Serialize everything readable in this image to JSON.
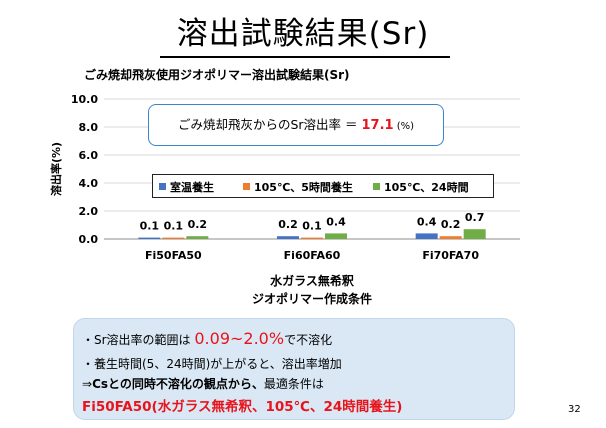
{
  "slide": {
    "title": "溶出試験結果(Sr)",
    "page_number": "32"
  },
  "callout": {
    "prefix": "ごみ焼却飛灰からのSr溶出率 ＝ ",
    "value": "17.1",
    "unit": " (%)"
  },
  "notes": {
    "line1_prefix": "・Sr溶出率の範囲は ",
    "line1_highlight": "0.09~2.0%",
    "line1_suffix": "で不溶化",
    "line2": "・養生時間(5、24時間)が上がると、溶出率増加",
    "line3_prefix": "⇒",
    "line3_bold": "Csとの同時不溶化の観点から、",
    "line3_suffix": "最適条件は",
    "line4": "Fi50FA50(水ガラス無希釈、105℃、24時間養生)"
  },
  "colors": {
    "series_room_temp": "#4472c4",
    "series_105_5h": "#ed7d31",
    "series_105_24h": "#70ad47",
    "accent_red": "#e8141c",
    "callout_border": "#3a86c8",
    "notes_background": "#dae8f5"
  },
  "chart_data": {
    "type": "bar",
    "title": "ごみ焼却飛灰使用ジオポリマー溶出試験結果(Sr)",
    "xlabel_lines": [
      "水ガラス無希釈",
      "ジオポリマー作成条件"
    ],
    "ylabel": "溶出率(%)",
    "categories": [
      "Fi50FA50",
      "Fi60FA60",
      "Fi70FA70"
    ],
    "ylim": [
      0,
      10
    ],
    "yticks": [
      "0.0",
      "2.0",
      "4.0",
      "6.0",
      "8.0",
      "10.0"
    ],
    "grid": true,
    "legend_position": "inside-middle",
    "series": [
      {
        "name": "室温養生",
        "values": [
          0.1,
          0.2,
          0.4
        ],
        "labels": [
          "0.1",
          "0.2",
          "0.4"
        ],
        "color": "#4472c4"
      },
      {
        "name": "105℃、5時間養生",
        "values": [
          0.1,
          0.1,
          0.2
        ],
        "labels": [
          "0.1",
          "0.1",
          "0.2"
        ],
        "color": "#ed7d31"
      },
      {
        "name": "105℃、24時間",
        "values": [
          0.2,
          0.4,
          0.7
        ],
        "labels": [
          "0.2",
          "0.4",
          "0.7"
        ],
        "color": "#70ad47"
      }
    ]
  }
}
